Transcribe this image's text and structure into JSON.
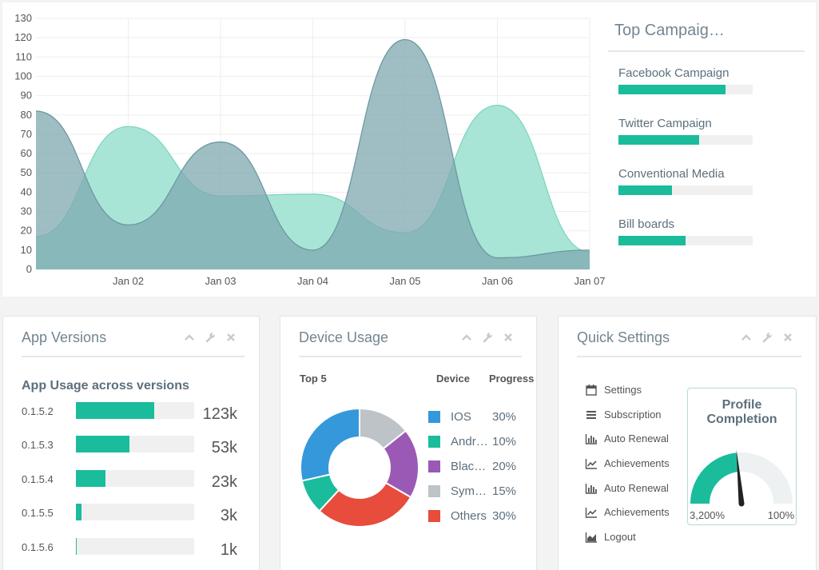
{
  "chart_data": {
    "type": "area",
    "x": [
      "2020-01-01",
      "2020-01-02",
      "2020-01-03",
      "2020-01-04",
      "2020-01-05",
      "2020-01-06",
      "2020-01-07"
    ],
    "x_tick_labels": [
      "Jan 02",
      "Jan 03",
      "Jan 04",
      "Jan 05",
      "Jan 06",
      "Jan 07"
    ],
    "series": [
      {
        "values": [
          17,
          74,
          38,
          39,
          19,
          85,
          9
        ],
        "color": "#a3e4d4"
      },
      {
        "values": [
          82,
          23,
          66,
          10,
          119,
          6,
          10
        ],
        "color": "#7fa8b0"
      }
    ],
    "y_ticks": [
      0,
      10,
      20,
      30,
      40,
      50,
      60,
      70,
      80,
      90,
      100,
      110,
      120,
      130
    ],
    "ylim": [
      0,
      130
    ],
    "grid": true
  },
  "campaigns": {
    "title": "Top Campaig…",
    "items": [
      {
        "name": "Facebook Campaign",
        "progress": 80
      },
      {
        "name": "Twitter Campaign",
        "progress": 60
      },
      {
        "name": "Conventional Media",
        "progress": 40
      },
      {
        "name": "Bill boards",
        "progress": 50
      }
    ]
  },
  "app_versions": {
    "title": "App Versions",
    "subtitle": "App Usage across versions",
    "rows": [
      {
        "version": "0.1.5.2",
        "value": "123k",
        "progress": 66
      },
      {
        "version": "0.1.5.3",
        "value": "53k",
        "progress": 45
      },
      {
        "version": "0.1.5.4",
        "value": "23k",
        "progress": 25
      },
      {
        "version": "0.1.5.5",
        "value": "3k",
        "progress": 5
      },
      {
        "version": "0.1.5.6",
        "value": "1k",
        "progress": 1
      }
    ]
  },
  "device_usage": {
    "title": "Device Usage",
    "col_top5": "Top 5",
    "col_device": "Device",
    "col_progress": "Progress",
    "items": [
      {
        "name": "IOS",
        "pct": "30%",
        "value": 30,
        "color": "#3498db"
      },
      {
        "name": "Android",
        "pct": "10%",
        "value": 10,
        "color": "#1abc9c"
      },
      {
        "name": "Blackberry",
        "pct": "20%",
        "value": 20,
        "color": "#9b59b6"
      },
      {
        "name": "Symbian",
        "pct": "15%",
        "value": 15,
        "color": "#bdc3c7"
      },
      {
        "name": "Others",
        "pct": "30%",
        "value": 30,
        "color": "#e74c3c"
      }
    ],
    "donut_order": [
      "Symbian",
      "Blackberry",
      "Others",
      "Android",
      "IOS"
    ]
  },
  "quick_settings": {
    "title": "Quick Settings",
    "items": [
      {
        "label": "Settings",
        "icon": "calendar-icon"
      },
      {
        "label": "Subscription",
        "icon": "bars-icon"
      },
      {
        "label": "Auto Renewal",
        "icon": "bar-chart-icon"
      },
      {
        "label": "Achievements",
        "icon": "line-chart-icon"
      },
      {
        "label": "Auto Renewal",
        "icon": "bar-chart-icon"
      },
      {
        "label": "Achievements",
        "icon": "line-chart-icon"
      },
      {
        "label": "Logout",
        "icon": "area-chart-icon"
      }
    ],
    "profile": {
      "title_line1": "Profile",
      "title_line2": "Completion",
      "gauge_min": "3,200%",
      "gauge_max": "100%",
      "gauge_fill_fraction": 0.47,
      "gauge_color": "#1abc9c"
    }
  }
}
